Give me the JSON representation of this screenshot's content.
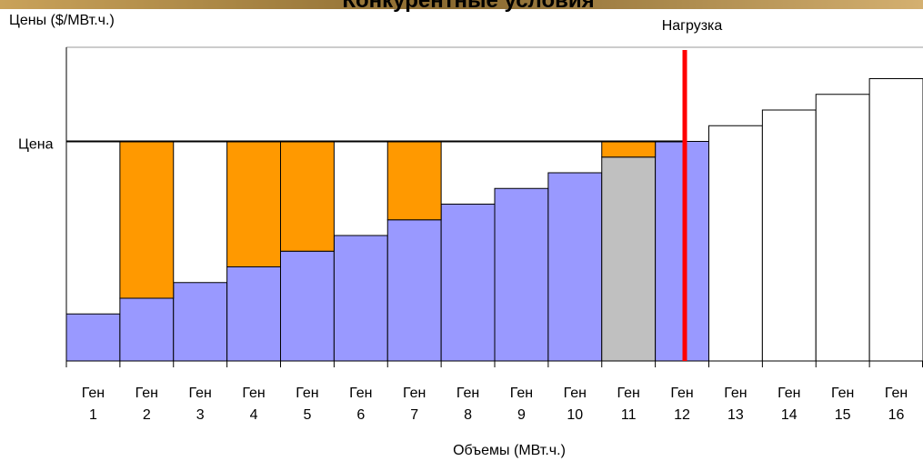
{
  "chart_data": {
    "type": "stacked_bar",
    "title": "Конкурентные условия",
    "ylabel": "Цены ($/МВт.ч.)",
    "xlabel": "Объемы (МВт.ч.)",
    "categories": [
      "Ген 1",
      "Ген 2",
      "Ген 3",
      "Ген 4",
      "Ген 5",
      "Ген 6",
      "Ген 7",
      "Ген 8",
      "Ген 9",
      "Ген 10",
      "Ген 11",
      "Ген 12",
      "Ген 13",
      "Ген 14",
      "Ген 15",
      "Ген 16"
    ],
    "series": [
      {
        "values": [
          15,
          20,
          25,
          30,
          35,
          40,
          45,
          50,
          55,
          60,
          65,
          70,
          75,
          80,
          85,
          90
        ],
        "colors": [
          "#9999ff",
          "#9999ff",
          "#9999ff",
          "#9999ff",
          "#9999ff",
          "#9999ff",
          "#9999ff",
          "#9999ff",
          "#9999ff",
          "#9999ff",
          "#c0c0c0",
          "#9999ff",
          "#ffffff",
          "#ffffff",
          "#ffffff",
          "#ffffff"
        ]
      },
      {
        "values": [
          null,
          50,
          null,
          40,
          35,
          null,
          25,
          null,
          null,
          null,
          5,
          null,
          null,
          null,
          null,
          null
        ],
        "color": "#ff9900"
      }
    ],
    "price": {
      "label": "Цена",
      "value": 70
    },
    "load": {
      "label": "Нагрузка",
      "x": 11.55,
      "color": "#ff0000"
    },
    "ylim": [
      0,
      100
    ]
  }
}
